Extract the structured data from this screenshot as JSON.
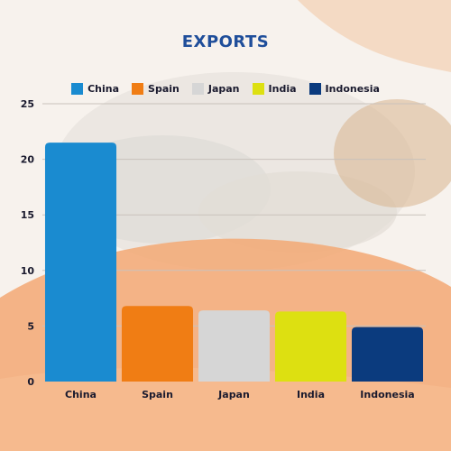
{
  "chart_data": {
    "type": "bar",
    "title": "EXPORTS",
    "categories": [
      "China",
      "Spain",
      "Japan",
      "India",
      "Indonesia"
    ],
    "values": [
      21.5,
      6.8,
      6.4,
      6.3,
      4.9
    ],
    "colors": [
      "#1a8bd0",
      "#f07d14",
      "#d6d6d6",
      "#dde011",
      "#0b3b7e"
    ],
    "legend": {
      "position": "top",
      "entries": [
        "China",
        "Spain",
        "Japan",
        "India",
        "Indonesia"
      ]
    },
    "ylim": [
      0,
      25
    ],
    "yticks": [
      "0",
      "5",
      "10",
      "15",
      "20",
      "25"
    ],
    "grid": true,
    "xlabel": "",
    "ylabel": ""
  }
}
